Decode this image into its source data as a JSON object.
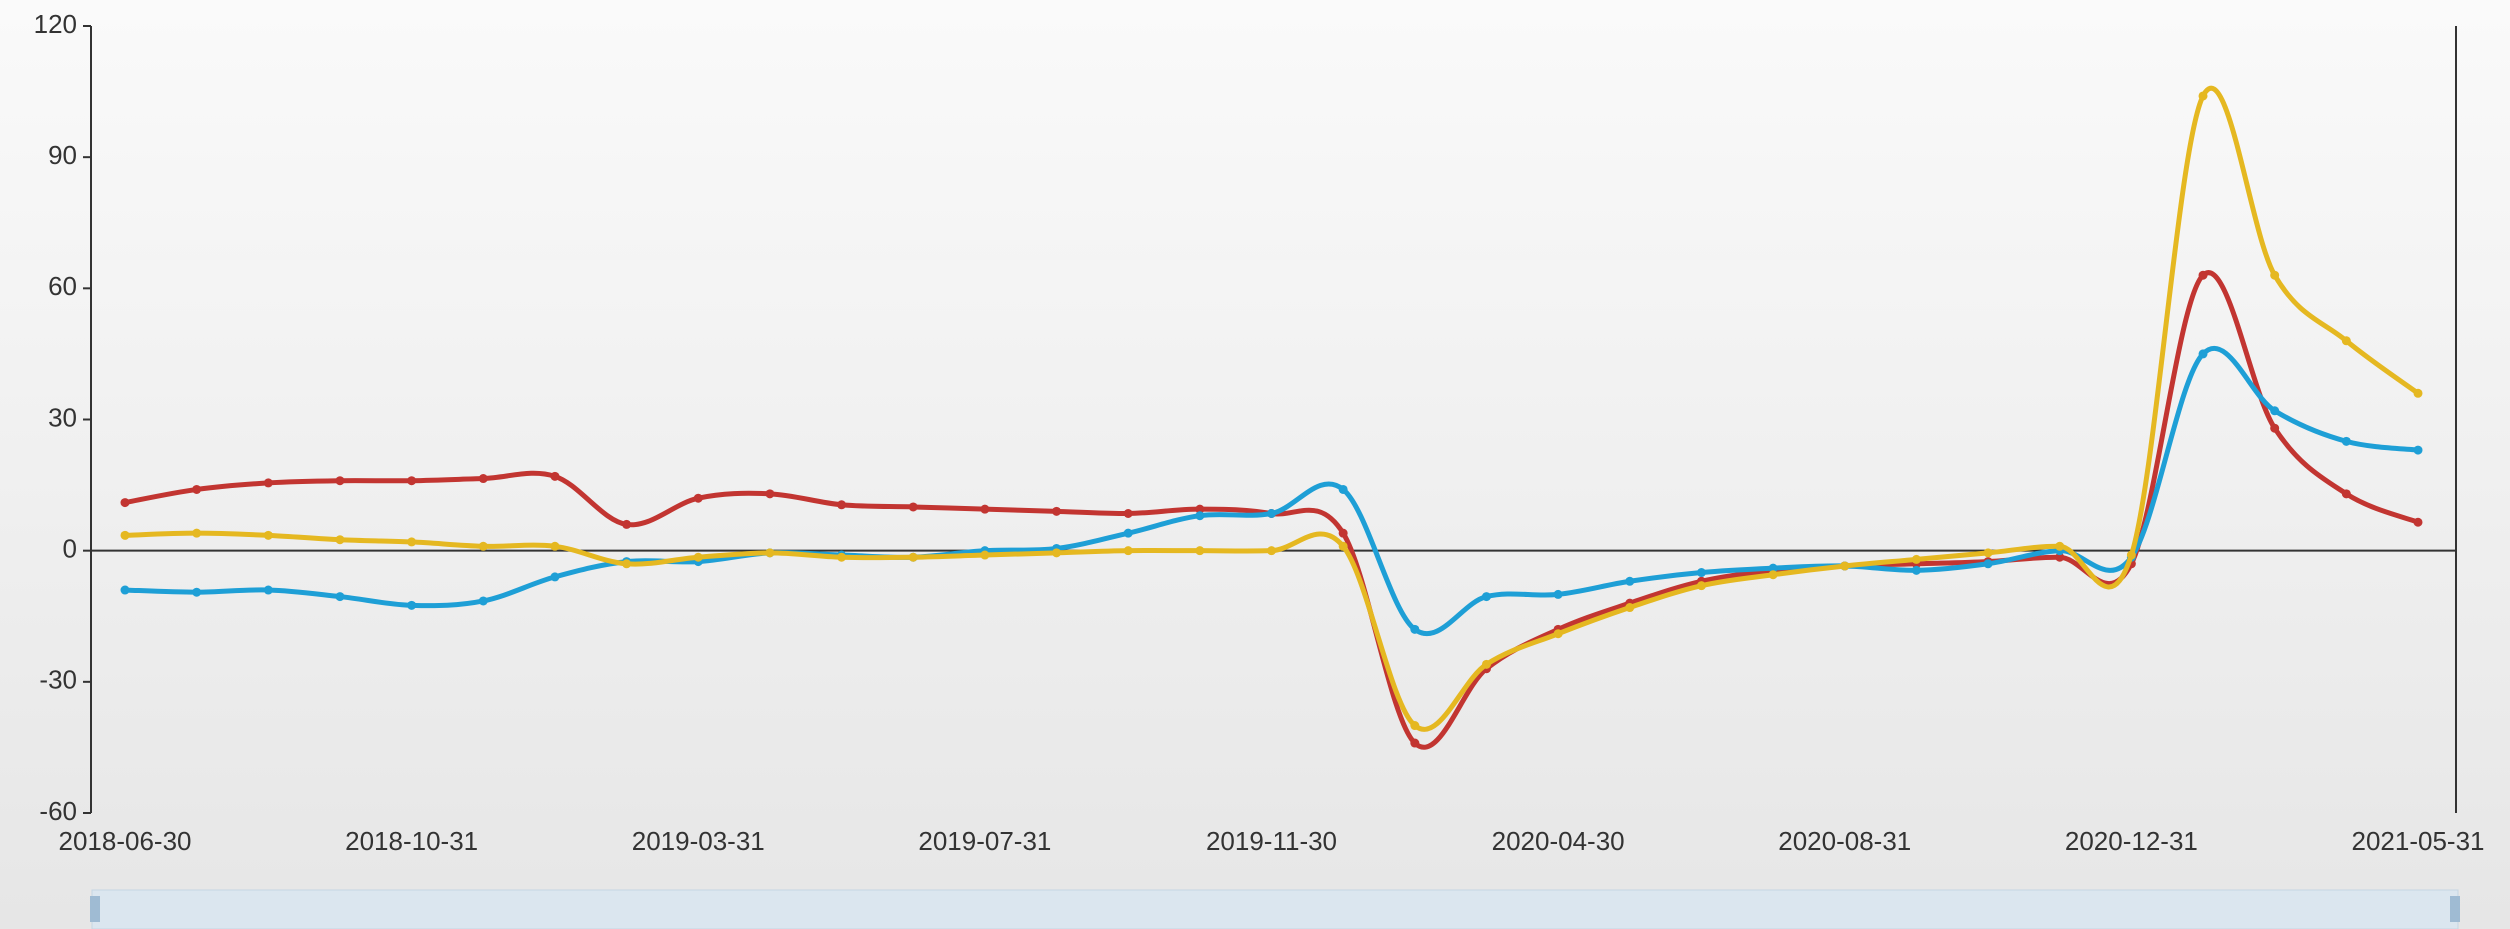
{
  "chart_data": {
    "type": "line",
    "smooth": true,
    "categories": [
      "2018-06-30",
      null,
      null,
      null,
      "2018-10-31",
      null,
      null,
      null,
      "2019-03-31",
      null,
      null,
      null,
      "2019-07-31",
      null,
      null,
      null,
      "2019-11-30",
      null,
      null,
      null,
      "2020-04-30",
      null,
      null,
      null,
      "2020-08-31",
      null,
      null,
      null,
      "2020-12-31",
      null,
      null,
      null,
      "2021-05-31"
    ],
    "series": [
      {
        "color": "#c23531",
        "values": [
          11,
          14,
          15.5,
          16,
          16,
          16.5,
          17,
          6,
          12,
          13,
          10.5,
          10,
          9.5,
          9,
          8.5,
          9.5,
          8.5,
          4,
          -44,
          -27,
          -18,
          -12,
          -7,
          -4.5,
          -3.5,
          -3,
          -2.5,
          -1.5,
          -3,
          63,
          28,
          13,
          6.5
        ]
      },
      {
        "color": "#1e9fd6",
        "values": [
          -9,
          -9.5,
          -9,
          -10.5,
          -12.5,
          -11.5,
          -6,
          -2.5,
          -2.5,
          -0.5,
          -1,
          -1.5,
          0,
          0.5,
          4,
          8,
          8.5,
          14,
          -18,
          -10.5,
          -10,
          -7,
          -5,
          -4,
          -3.5,
          -4.5,
          -3,
          0,
          -1.5,
          45,
          32,
          25,
          23
        ]
      },
      {
        "color": "#e5b821",
        "values": [
          3.5,
          4,
          3.5,
          2.5,
          2,
          1,
          1,
          -3,
          -1.5,
          -0.5,
          -1.5,
          -1.5,
          -1,
          -0.5,
          0,
          0,
          0,
          1,
          -40,
          -26,
          -19,
          -13,
          -8,
          -5.5,
          -3.5,
          -2,
          -0.5,
          1,
          -1,
          104,
          63,
          48,
          36
        ]
      }
    ],
    "ylim": [
      -60,
      120
    ],
    "yticks": [
      -60,
      -30,
      0,
      30,
      60,
      90,
      120
    ]
  }
}
